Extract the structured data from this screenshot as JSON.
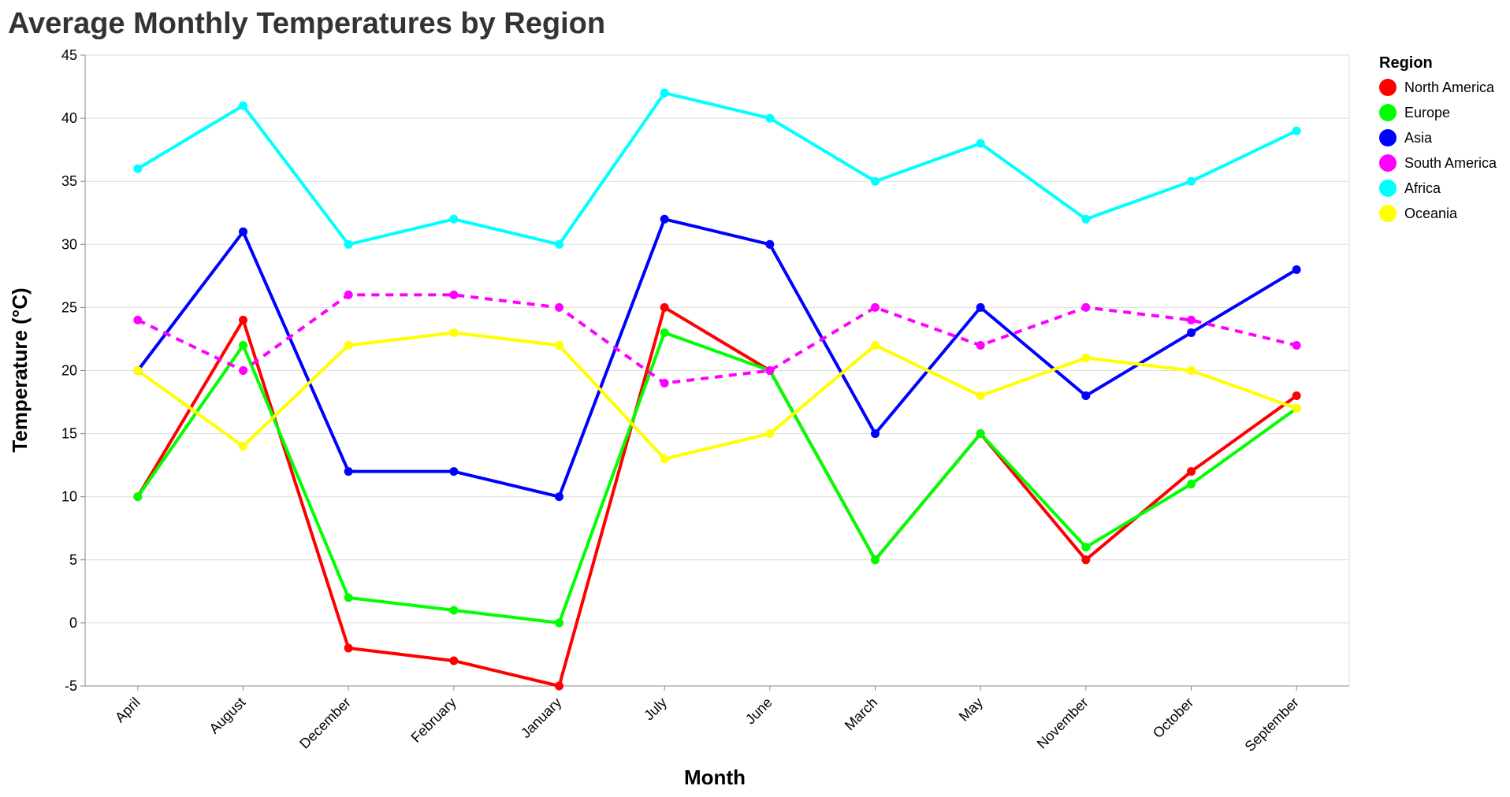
{
  "chart_data": {
    "type": "line",
    "title": "Average Monthly Temperatures by Region",
    "xlabel": "Month",
    "ylabel": "Temperature (°C)",
    "ylim": [
      -5,
      45
    ],
    "yticks": [
      -5,
      0,
      5,
      10,
      15,
      20,
      25,
      30,
      35,
      40,
      45
    ],
    "grid": true,
    "legend_title": "Region",
    "legend_position": "top-right",
    "categories": [
      "April",
      "August",
      "December",
      "February",
      "January",
      "July",
      "June",
      "March",
      "May",
      "November",
      "October",
      "September"
    ],
    "series": [
      {
        "name": "North America",
        "color": "#ff0000",
        "dashed": false,
        "values": [
          10,
          24,
          -2,
          -3,
          -5,
          25,
          20,
          5,
          15,
          5,
          12,
          18
        ]
      },
      {
        "name": "Europe",
        "color": "#00ff00",
        "dashed": false,
        "values": [
          10,
          22,
          2,
          1,
          0,
          23,
          20,
          5,
          15,
          6,
          11,
          17
        ]
      },
      {
        "name": "Asia",
        "color": "#0000ff",
        "dashed": false,
        "values": [
          20,
          31,
          12,
          12,
          10,
          32,
          30,
          15,
          25,
          18,
          23,
          28
        ]
      },
      {
        "name": "South America",
        "color": "#ff00ff",
        "dashed": true,
        "values": [
          24,
          20,
          26,
          26,
          25,
          19,
          20,
          25,
          22,
          25,
          24,
          22
        ]
      },
      {
        "name": "Africa",
        "color": "#00ffff",
        "dashed": false,
        "values": [
          36,
          41,
          30,
          32,
          30,
          42,
          40,
          35,
          38,
          32,
          35,
          39
        ]
      },
      {
        "name": "Oceania",
        "color": "#ffff00",
        "dashed": false,
        "values": [
          20,
          14,
          22,
          23,
          22,
          13,
          15,
          22,
          18,
          21,
          20,
          17
        ]
      }
    ]
  }
}
